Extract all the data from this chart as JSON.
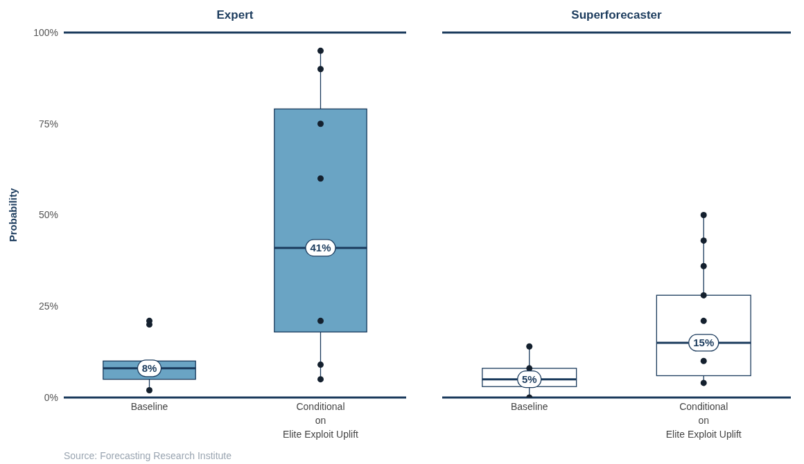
{
  "chart_data": [
    {
      "type": "box",
      "title": "Expert",
      "ylabel": "Probability",
      "categories": [
        "Baseline",
        "Conditional\non\nElite Exploit Uplift"
      ],
      "ylim": [
        0,
        100
      ],
      "yticks": [
        {
          "value": 0,
          "label": "0%"
        },
        {
          "value": 25,
          "label": "25%"
        },
        {
          "value": 50,
          "label": "50%"
        },
        {
          "value": 75,
          "label": "75%"
        },
        {
          "value": 100,
          "label": "100%"
        }
      ],
      "color": "#6aa4c4",
      "boxes": [
        {
          "low": 2,
          "q1": 5,
          "median": 8,
          "q3": 10,
          "high": 10
        },
        {
          "low": 5,
          "q1": 18,
          "median": 41,
          "q3": 79,
          "high": 95
        }
      ],
      "series": [
        {
          "type": "scatter",
          "x": [
            "Baseline",
            "Baseline",
            "Baseline",
            "Conditional\non\nElite Exploit Uplift",
            "Conditional\non\nElite Exploit Uplift",
            "Conditional\non\nElite Exploit Uplift",
            "Conditional\non\nElite Exploit Uplift",
            "Conditional\non\nElite Exploit Uplift",
            "Conditional\non\nElite Exploit Uplift",
            "Conditional\non\nElite Exploit Uplift"
          ],
          "values": [
            2,
            20,
            21,
            5,
            9,
            21,
            60,
            75,
            90,
            95
          ],
          "color": "#14202e"
        }
      ],
      "marker": "circle",
      "annotations": [
        {
          "text": "8%",
          "x": "Baseline",
          "y": 8
        },
        {
          "text": "41%",
          "x": "Conditional\non\nElite Exploit Uplift",
          "y": 41
        },
        "Source: Forecasting Research Institute"
      ]
    },
    {
      "type": "box",
      "title": "Superforecaster",
      "categories": [
        "Baseline",
        "Conditional\non\nElite Exploit Uplift"
      ],
      "ylim": [
        0,
        100
      ],
      "tick_labels": "x",
      "color": "#ffffff",
      "boxes": [
        {
          "low": 0,
          "q1": 3,
          "median": 5,
          "q3": 8,
          "high": 14
        },
        {
          "low": 4,
          "q1": 6,
          "median": 15,
          "q3": 28,
          "high": 50
        }
      ],
      "series": [
        {
          "type": "scatter",
          "x": [
            "Baseline",
            "Baseline",
            "Baseline",
            "Conditional\non\nElite Exploit Uplift",
            "Conditional\non\nElite Exploit Uplift",
            "Conditional\non\nElite Exploit Uplift",
            "Conditional\non\nElite Exploit Uplift",
            "Conditional\non\nElite Exploit Uplift",
            "Conditional\non\nElite Exploit Uplift",
            "Conditional\non\nElite Exploit Uplift"
          ],
          "values": [
            0,
            8,
            14,
            4,
            10,
            21,
            28,
            36,
            43,
            50
          ],
          "color": "#14202e"
        }
      ],
      "marker": "circle",
      "annotations": [
        {
          "text": "5%",
          "x": "Baseline",
          "y": 5
        },
        {
          "text": "15%",
          "x": "Conditional\non\nElite Exploit Uplift",
          "y": 15
        }
      ]
    }
  ]
}
